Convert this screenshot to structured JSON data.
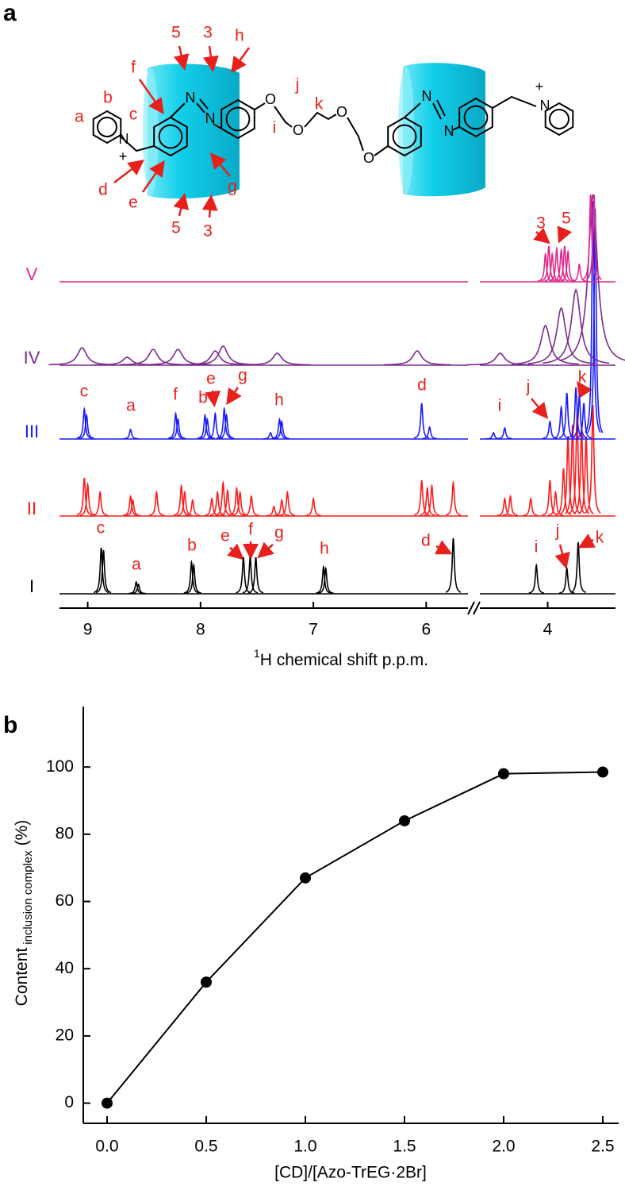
{
  "chart_data": [
    {
      "type": "spectrum",
      "panel_label": "a",
      "xlabel_sup": "1",
      "xlabel": "H chemical shift p.p.m.",
      "xlim": [
        9.25,
        5.63
      ],
      "x2lim": [
        4.6,
        3.4
      ],
      "xticks": [
        9,
        8,
        7,
        6
      ],
      "x2ticks": [
        4
      ],
      "atoms": [
        "N",
        "+",
        "N",
        "N",
        "O",
        "O",
        "O",
        "O",
        "N",
        "N",
        "N",
        "+"
      ],
      "structure_labels": [
        "a",
        "b",
        "c",
        "d",
        "e",
        "f",
        "g",
        "h",
        "i",
        "j",
        "k",
        "5",
        "3",
        "5",
        "3"
      ],
      "series": [
        {
          "name": "I",
          "color": "#000000",
          "x": [
            8.88,
            8.86,
            8.57,
            8.55,
            8.08,
            8.06,
            7.62,
            7.56,
            7.51,
            6.91,
            6.89,
            5.76,
            4.1,
            3.83,
            3.73
          ],
          "values": [
            58,
            55,
            15,
            12,
            40,
            36,
            46,
            46,
            46,
            34,
            32,
            70,
            36,
            32,
            65
          ],
          "annotations": [
            "c",
            "a",
            "b",
            "e",
            "f",
            "g",
            "h",
            "d",
            "i",
            "j",
            "k"
          ]
        },
        {
          "name": "II",
          "color": "#ff1a1a",
          "x": [
            9.03,
            9.0,
            8.89,
            8.62,
            8.6,
            8.39,
            8.17,
            8.14,
            8.07,
            7.9,
            7.85,
            7.8,
            7.76,
            7.68,
            7.65,
            7.55,
            7.35,
            7.28,
            7.23,
            7.0,
            6.04,
            5.99,
            5.95,
            5.76,
            4.38,
            4.33,
            4.15,
            3.98,
            3.93,
            3.86,
            3.82,
            3.78,
            3.74,
            3.7,
            3.66,
            3.6
          ],
          "values": [
            48,
            40,
            30,
            25,
            20,
            30,
            38,
            30,
            20,
            22,
            30,
            42,
            32,
            35,
            30,
            25,
            12,
            20,
            30,
            22,
            45,
            35,
            38,
            42,
            22,
            25,
            22,
            45,
            30,
            60,
            100,
            115,
            130,
            110,
            100,
            140
          ]
        },
        {
          "name": "III",
          "color": "#1a1aff",
          "x": [
            9.03,
            9.01,
            8.62,
            8.22,
            8.2,
            7.96,
            7.94,
            7.87,
            7.79,
            7.77,
            7.38,
            7.3,
            7.28,
            6.04,
            5.97,
            4.48,
            4.38,
            3.98,
            3.88,
            3.83,
            3.75,
            3.72,
            3.68,
            3.6,
            3.58
          ],
          "values": [
            38,
            30,
            12,
            32,
            25,
            30,
            25,
            32,
            38,
            30,
            8,
            25,
            22,
            45,
            15,
            8,
            14,
            22,
            40,
            58,
            65,
            55,
            45,
            300,
            290
          ],
          "annotations": [
            "c",
            "a",
            "f",
            "b",
            "e",
            "g",
            "h",
            "d",
            "i",
            "j",
            "k"
          ]
        },
        {
          "name": "IV",
          "color": "#7b2a8e",
          "broad": true,
          "x": [
            9.05,
            8.65,
            8.42,
            8.2,
            7.87,
            7.8,
            7.32,
            6.08,
            4.42,
            4.02,
            3.88,
            3.75,
            3.6
          ],
          "values": [
            22,
            10,
            20,
            20,
            18,
            24,
            15,
            18,
            15,
            50,
            72,
            95,
            215
          ]
        },
        {
          "name": "V",
          "color": "#e0288a",
          "x": [
            4.02,
            3.99,
            3.96,
            3.92,
            3.88,
            3.85,
            3.82,
            3.72,
            3.62,
            3.59
          ],
          "values": [
            35,
            45,
            35,
            42,
            40,
            45,
            38,
            22,
            110,
            110
          ],
          "annotations": [
            "3",
            "5"
          ]
        }
      ]
    },
    {
      "type": "line",
      "panel_label": "b",
      "ylabel": "Content",
      "ylabel_sub": "inclusion complex",
      "ylabel_unit": "(%)",
      "xlabel": "[CD]/[Azo-TrEG·2Br]",
      "x": [
        0,
        0.5,
        1,
        1.5,
        2,
        2.5
      ],
      "values": [
        0,
        36,
        67,
        84,
        98,
        98.5
      ],
      "color": "#000000",
      "xlim": [
        -0.12,
        2.58
      ],
      "ylim": [
        -6,
        118
      ],
      "xticks": [
        {
          "value": 0,
          "label": "0.0"
        },
        0.5,
        {
          "value": 1,
          "label": "1.0"
        },
        1.5,
        {
          "value": 2,
          "label": "2.0"
        },
        2.5
      ],
      "yticks": [
        0,
        20,
        40,
        60,
        80,
        100
      ]
    }
  ]
}
